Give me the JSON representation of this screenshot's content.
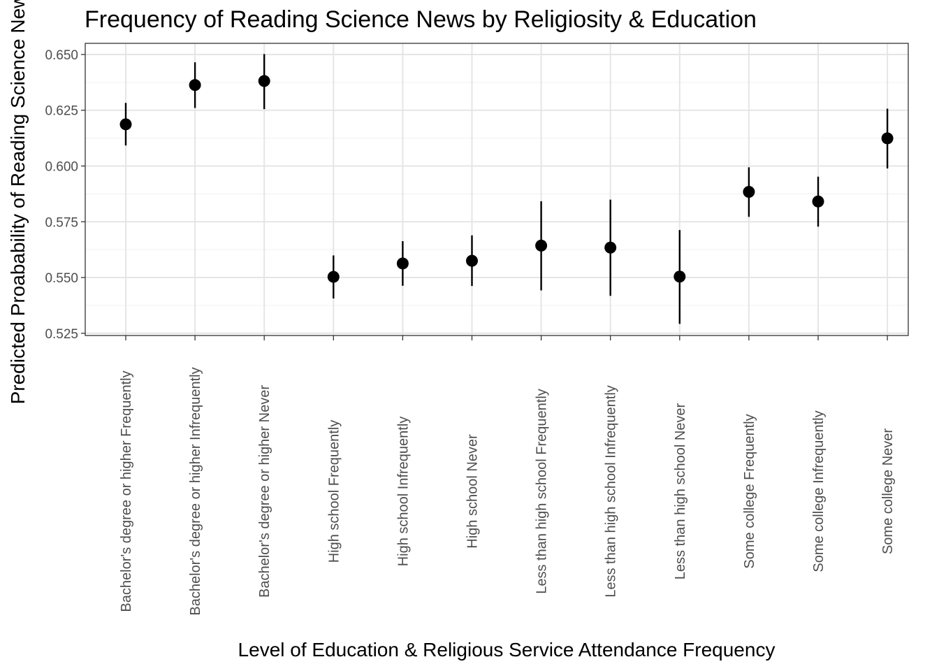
{
  "chart_data": {
    "type": "scatter",
    "title": "Frequency of Reading Science News by Religiosity & Education",
    "xlabel": "Level of Education & Religious Service Attendance Frequency",
    "ylabel": "Predicted Proabability of Reading Science News",
    "ylim": [
      0.524,
      0.655
    ],
    "yticks": [
      0.525,
      0.55,
      0.575,
      0.6,
      0.625,
      0.65
    ],
    "ytick_labels": [
      "0.525",
      "0.550",
      "0.575",
      "0.600",
      "0.625",
      "0.650"
    ],
    "grid": true,
    "categories": [
      "Bachelor's degree or higher Frequently",
      "Bachelor's degree or higher Infrequently",
      "Bachelor's degree or higher Never",
      "High school Frequently",
      "High school Infrequently",
      "High school Never",
      "Less than high school Frequently",
      "Less than high school Infrequently",
      "Less than high school Never",
      "Some college Frequently",
      "Some college Infrequently",
      "Some college Never"
    ],
    "values": [
      0.6187,
      0.6363,
      0.6381,
      0.5503,
      0.5563,
      0.5575,
      0.5643,
      0.5634,
      0.5504,
      0.5884,
      0.5841,
      0.6124
    ],
    "lower": [
      0.6092,
      0.626,
      0.6255,
      0.5406,
      0.5463,
      0.5462,
      0.5442,
      0.5418,
      0.5292,
      0.5772,
      0.5728,
      0.5989
    ],
    "upper": [
      0.6283,
      0.6465,
      0.6502,
      0.5599,
      0.5663,
      0.5689,
      0.5842,
      0.5849,
      0.5713,
      0.5994,
      0.5952,
      0.6257
    ]
  }
}
